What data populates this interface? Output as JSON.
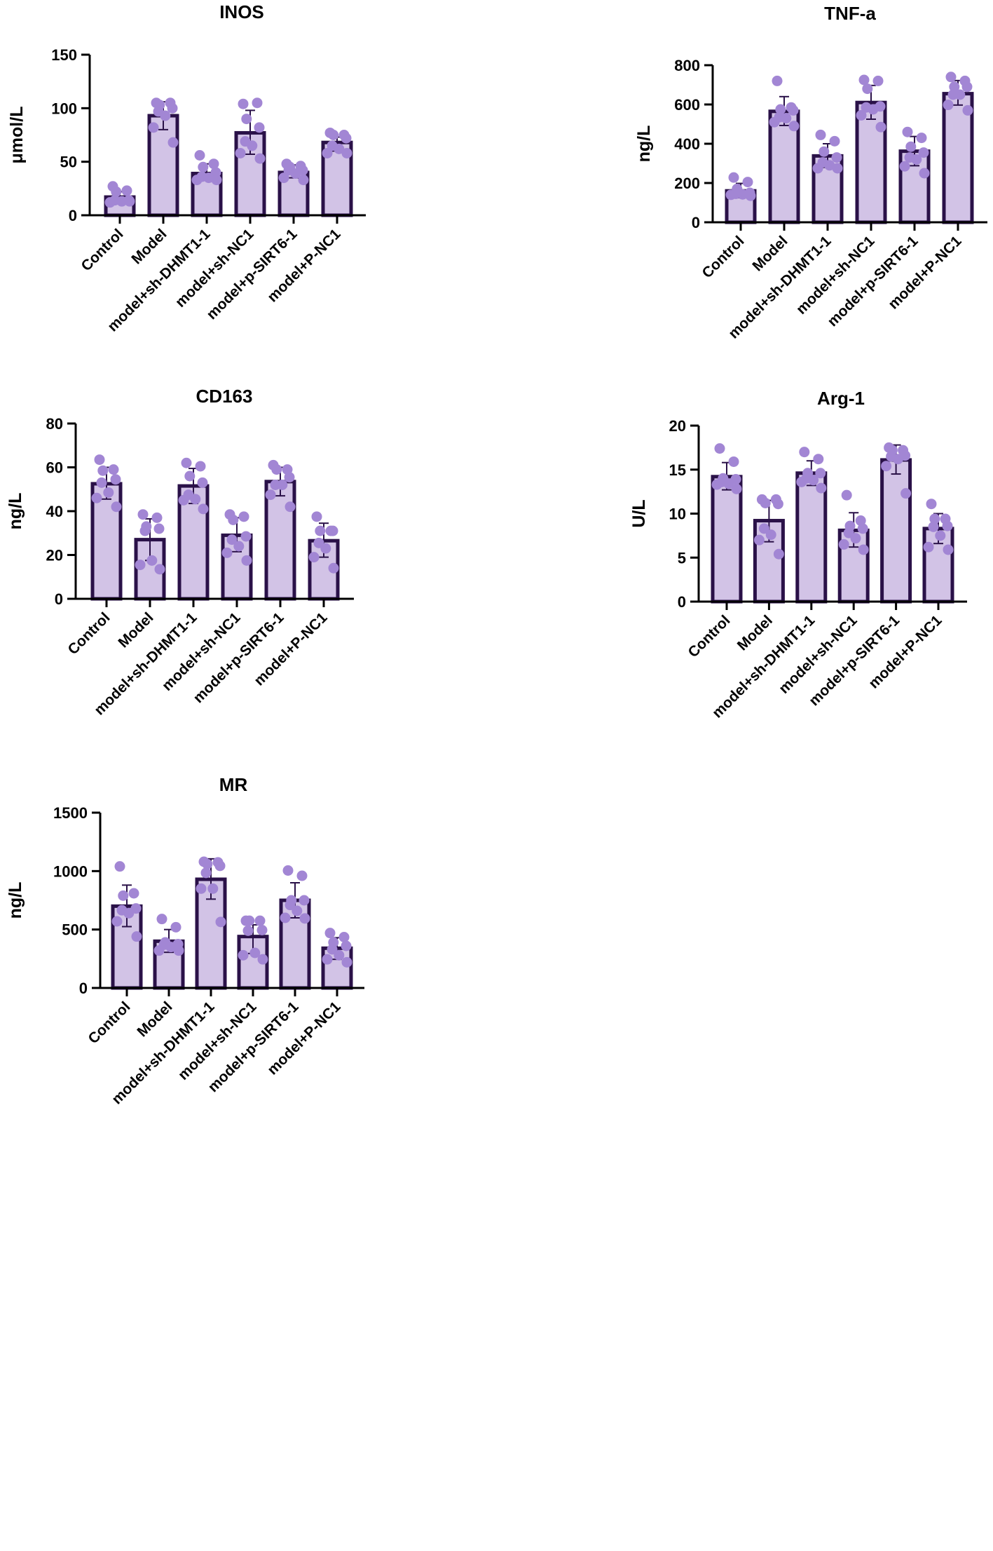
{
  "style": {
    "bar_fill": "#d2c3e6",
    "bar_stroke": "#2a1148",
    "point_color": "#a286d4",
    "axis_color": "#000000"
  },
  "chart_data": [
    {
      "id": "inos",
      "type": "bar",
      "title": "INOS",
      "xlabel": "",
      "ylabel": "μmol/L",
      "ylim": [
        0,
        150
      ],
      "yticks": [
        0,
        50,
        100,
        150
      ],
      "categories": [
        "Control",
        "Model",
        "model+sh-DHMT1-1",
        "model+sh-NC1",
        "model+p-SIRT6-1",
        "model+P-NC1"
      ],
      "values": [
        17,
        93,
        39,
        77,
        40,
        68
      ],
      "error": [
        [
          13,
          22
        ],
        [
          80,
          106
        ],
        [
          33,
          48
        ],
        [
          57,
          98
        ],
        [
          35,
          47
        ],
        [
          60,
          73
        ]
      ],
      "points": [
        [
          27,
          23,
          22,
          14,
          14,
          13,
          12,
          13
        ],
        [
          105,
          105,
          103,
          100,
          97,
          93,
          82,
          68
        ],
        [
          56,
          48,
          45,
          40,
          36,
          35,
          33,
          33
        ],
        [
          104,
          105,
          90,
          82,
          69,
          65,
          58,
          53
        ],
        [
          48,
          46,
          45,
          42,
          42,
          39,
          35,
          33
        ],
        [
          77,
          75,
          75,
          72,
          65,
          62,
          58,
          58
        ]
      ]
    },
    {
      "id": "tnfa",
      "type": "bar",
      "title": "TNF-a",
      "xlabel": "",
      "ylabel": "ng/L",
      "ylim": [
        0,
        800
      ],
      "yticks": [
        0,
        200,
        400,
        600,
        800
      ],
      "categories": [
        "Control",
        "Model",
        "model+sh-DHMT1-1",
        "model+sh-NC1",
        "model+p-SIRT6-1",
        "model+P-NC1"
      ],
      "values": [
        160,
        565,
        338,
        610,
        362,
        655
      ],
      "error": [
        [
          125,
          198
        ],
        [
          493,
          640
        ],
        [
          280,
          400
        ],
        [
          525,
          697
        ],
        [
          288,
          437
        ],
        [
          597,
          722
        ]
      ],
      "points": [
        [
          228,
          205,
          170,
          150,
          145,
          142,
          140,
          135
        ],
        [
          720,
          585,
          575,
          570,
          535,
          530,
          510,
          490
        ],
        [
          445,
          413,
          360,
          330,
          305,
          290,
          275,
          275
        ],
        [
          725,
          720,
          680,
          590,
          585,
          575,
          545,
          485
        ],
        [
          460,
          430,
          385,
          355,
          330,
          320,
          285,
          250
        ],
        [
          740,
          720,
          690,
          690,
          650,
          650,
          598,
          570
        ]
      ]
    },
    {
      "id": "cd163",
      "type": "bar",
      "title": "CD163",
      "xlabel": "",
      "ylabel": "ng/L",
      "ylim": [
        0,
        80
      ],
      "yticks": [
        0,
        20,
        40,
        60,
        80
      ],
      "categories": [
        "Control",
        "Model",
        "model+sh-DHMT1-1",
        "model+sh-NC1",
        "model+p-SIRT6-1",
        "model+P-NC1"
      ],
      "values": [
        52.5,
        27,
        51.5,
        29,
        53.5,
        26.5
      ],
      "error": [
        [
          45.5,
          60
        ],
        [
          17.5,
          36.5
        ],
        [
          43.5,
          59.5
        ],
        [
          21.5,
          37
        ],
        [
          47,
          60
        ],
        [
          19,
          34.5
        ]
      ],
      "points": [
        [
          63.5,
          59,
          58.5,
          54.5,
          53,
          48.5,
          46,
          42
        ],
        [
          38.5,
          37,
          33,
          32,
          31,
          17.5,
          15.5,
          13.5
        ],
        [
          62,
          60.5,
          56,
          53,
          47.5,
          45.5,
          45,
          41
        ],
        [
          38.5,
          37.5,
          36,
          28.5,
          27,
          24,
          21,
          17.5
        ],
        [
          61,
          59,
          59,
          55.5,
          52,
          52,
          47.5,
          42
        ],
        [
          37.5,
          31,
          31,
          31,
          25.5,
          23,
          19,
          14
        ]
      ]
    },
    {
      "id": "arg1",
      "type": "bar",
      "title": "Arg-1",
      "xlabel": "",
      "ylabel": "U/L",
      "ylim": [
        0,
        20
      ],
      "yticks": [
        0,
        5,
        10,
        15,
        20
      ],
      "categories": [
        "Control",
        "Model",
        "model+sh-DHMT1-1",
        "model+sh-NC1",
        "model+p-SIRT6-1",
        "model+P-NC1"
      ],
      "values": [
        14.2,
        9.2,
        14.6,
        8.1,
        16.1,
        8.3
      ],
      "error": [
        [
          12.7,
          15.8
        ],
        [
          6.8,
          11.5
        ],
        [
          13.2,
          16
        ],
        [
          6.2,
          10.1
        ],
        [
          14.5,
          17.8
        ],
        [
          6.6,
          10
        ]
      ],
      "points": [
        [
          17.4,
          15.9,
          14,
          13.9,
          13.6,
          13.4,
          13.3,
          12.8
        ],
        [
          11.6,
          11.6,
          11.2,
          11.1,
          8.3,
          7.6,
          7,
          5.4
        ],
        [
          17,
          16.2,
          14.6,
          14.6,
          14,
          13.8,
          13.6,
          12.9
        ],
        [
          12.1,
          9.2,
          8.6,
          8.3,
          7.8,
          7.2,
          6.5,
          5.9
        ],
        [
          17.5,
          17.2,
          17.2,
          16.6,
          16.5,
          16.2,
          15.4,
          12.3
        ],
        [
          11.1,
          9.4,
          9.4,
          8.6,
          8.5,
          7.5,
          6.2,
          5.9
        ]
      ]
    },
    {
      "id": "mr",
      "type": "bar",
      "title": "MR",
      "xlabel": "",
      "ylabel": "ng/L",
      "ylim": [
        0,
        1500
      ],
      "yticks": [
        0,
        500,
        1000,
        1500
      ],
      "categories": [
        "Control",
        "Model",
        "model+sh-DHMT1-1",
        "model+sh-NC1",
        "model+p-SIRT6-1",
        "model+P-NC1"
      ],
      "values": [
        700,
        400,
        930,
        440,
        750,
        340
      ],
      "error": [
        [
          525,
          880
        ],
        [
          305,
          500
        ],
        [
          760,
          1105
        ],
        [
          295,
          540
        ],
        [
          600,
          900
        ],
        [
          245,
          430
        ]
      ],
      "points": [
        [
          1040,
          810,
          790,
          680,
          665,
          640,
          570,
          440
        ],
        [
          590,
          520,
          390,
          375,
          370,
          350,
          320,
          320
        ],
        [
          1080,
          1075,
          1060,
          1045,
          985,
          850,
          850,
          565
        ],
        [
          575,
          575,
          575,
          495,
          490,
          300,
          280,
          245
        ],
        [
          1005,
          960,
          750,
          750,
          710,
          660,
          600,
          595
        ],
        [
          470,
          435,
          390,
          360,
          330,
          280,
          245,
          220
        ]
      ]
    }
  ]
}
